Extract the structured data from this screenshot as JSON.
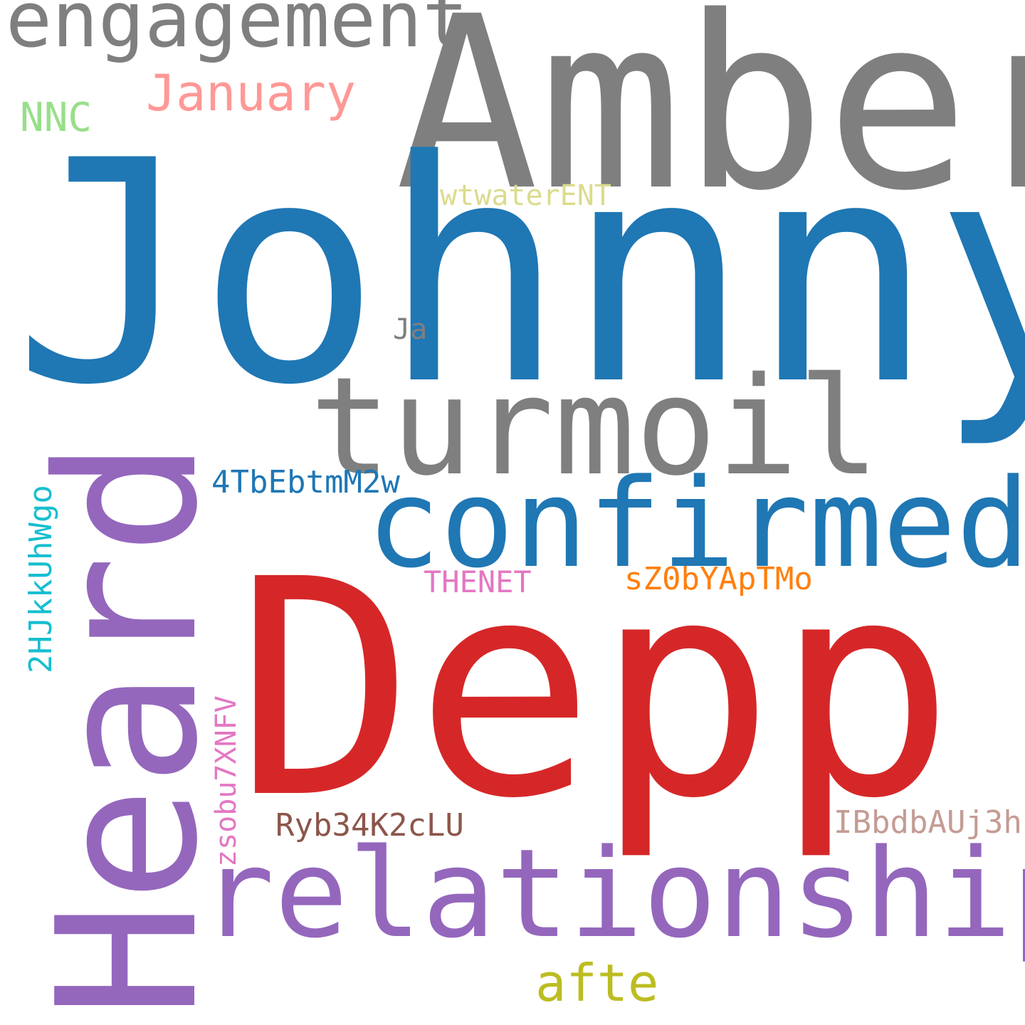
{
  "words": {
    "johnny": {
      "text": "Johnny",
      "color": "#1f77b4"
    },
    "amber": {
      "text": "Amber",
      "color": "#7f7f7f"
    },
    "depp": {
      "text": "Depp",
      "color": "#d62728"
    },
    "heard": {
      "text": "Heard",
      "color": "#9467bd"
    },
    "turmoil": {
      "text": "turmoil",
      "color": "#7f7f7f"
    },
    "confirmed": {
      "text": "confirmed",
      "color": "#1f77b4"
    },
    "relationship": {
      "text": "relationship",
      "color": "#9467bd"
    },
    "engagement": {
      "text": "engagement",
      "color": "#7f7f7f"
    },
    "january": {
      "text": "January",
      "color": "#ff9896"
    },
    "nnc": {
      "text": "NNC",
      "color": "#98df8a"
    },
    "swtwater": {
      "text": "SwtwaterENT",
      "color": "#dbdb8d"
    },
    "ja": {
      "text": "Ja",
      "color": "#7f7f7f"
    },
    "tbe": {
      "text": "4TbEbtmM2w",
      "color": "#1f77b4"
    },
    "hjk": {
      "text": "2HJkkUhWgo",
      "color": "#17becf"
    },
    "thenet": {
      "text": "THENET",
      "color": "#e377c2"
    },
    "sz0b": {
      "text": "sZ0bYApTMo",
      "color": "#ff7f0e"
    },
    "zsob": {
      "text": "zsobu7XNFV",
      "color": "#e377c2"
    },
    "ryb": {
      "text": "Ryb34K2cLU",
      "color": "#8c564b"
    },
    "ibbd": {
      "text": "IBbdbAUj3h",
      "color": "#c49c94"
    },
    "afte": {
      "text": "afte",
      "color": "#bcbd22"
    }
  }
}
